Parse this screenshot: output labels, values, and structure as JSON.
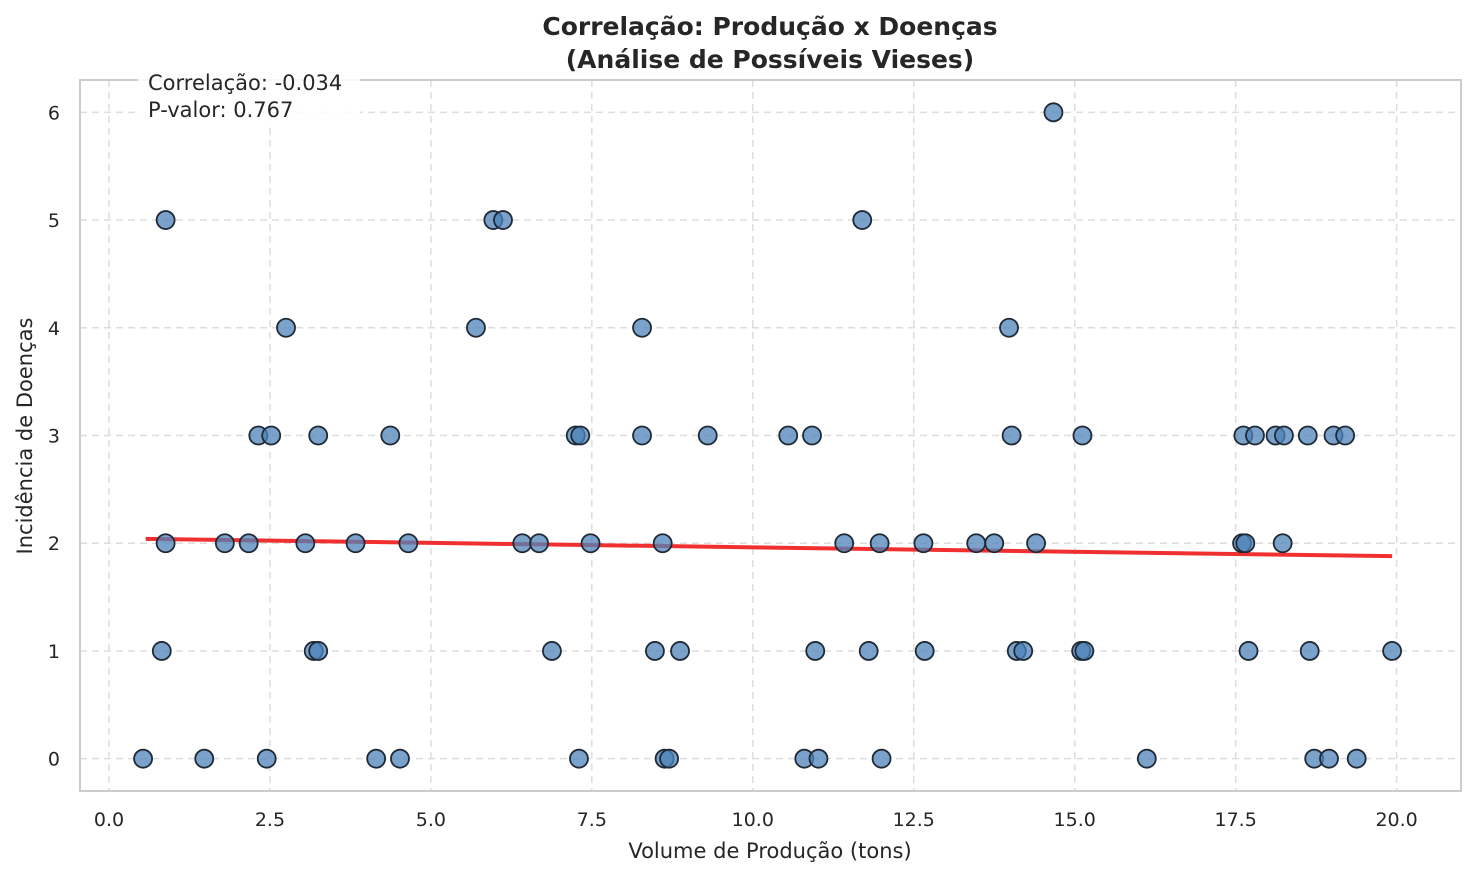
{
  "chart_data": {
    "type": "scatter",
    "title": [
      "Correlação: Produção x Doenças",
      "(Análise de Possíveis Vieses)"
    ],
    "xlabel": "Volume de Produção (tons)",
    "ylabel": "Incidência de Doenças",
    "xlim": [
      -0.45,
      21.0
    ],
    "ylim": [
      -0.3,
      6.3
    ],
    "xticks": [
      0.0,
      2.5,
      5.0,
      7.5,
      10.0,
      12.5,
      15.0,
      17.5,
      20.0
    ],
    "xtick_labels": [
      "0.0",
      "2.5",
      "5.0",
      "7.5",
      "10.0",
      "12.5",
      "15.0",
      "17.5",
      "20.0"
    ],
    "yticks": [
      0,
      1,
      2,
      3,
      4,
      5,
      6
    ],
    "ytick_labels": [
      "0",
      "1",
      "2",
      "3",
      "4",
      "5",
      "6"
    ],
    "grid": true,
    "annotation": [
      "Correlação: -0.034",
      "P-valor: 0.767"
    ],
    "trend_line": {
      "x": [
        0.57,
        19.93
      ],
      "y": [
        2.04,
        1.88
      ],
      "color": "#f03030"
    },
    "point_color": "#4e83b8",
    "points": [
      [
        0.88,
        5
      ],
      [
        14.67,
        6
      ],
      [
        5.97,
        5
      ],
      [
        6.12,
        5
      ],
      [
        11.7,
        5
      ],
      [
        2.75,
        4
      ],
      [
        5.7,
        4
      ],
      [
        8.28,
        4
      ],
      [
        13.98,
        4
      ],
      [
        2.32,
        3
      ],
      [
        2.52,
        3
      ],
      [
        3.25,
        3
      ],
      [
        4.37,
        3
      ],
      [
        7.25,
        3
      ],
      [
        7.32,
        3
      ],
      [
        8.28,
        3
      ],
      [
        9.3,
        3
      ],
      [
        10.55,
        3
      ],
      [
        10.92,
        3
      ],
      [
        14.02,
        3
      ],
      [
        15.12,
        3
      ],
      [
        17.62,
        3
      ],
      [
        17.8,
        3
      ],
      [
        18.12,
        3
      ],
      [
        18.25,
        3
      ],
      [
        18.62,
        3
      ],
      [
        19.02,
        3
      ],
      [
        19.2,
        3
      ],
      [
        0.88,
        2
      ],
      [
        1.8,
        2
      ],
      [
        2.17,
        2
      ],
      [
        3.05,
        2
      ],
      [
        3.83,
        2
      ],
      [
        4.65,
        2
      ],
      [
        6.42,
        2
      ],
      [
        6.68,
        2
      ],
      [
        7.48,
        2
      ],
      [
        8.6,
        2
      ],
      [
        11.42,
        2
      ],
      [
        11.97,
        2
      ],
      [
        12.65,
        2
      ],
      [
        13.47,
        2
      ],
      [
        13.75,
        2
      ],
      [
        14.4,
        2
      ],
      [
        17.6,
        2
      ],
      [
        17.65,
        2
      ],
      [
        18.23,
        2
      ],
      [
        0.82,
        1
      ],
      [
        3.18,
        1
      ],
      [
        3.25,
        1
      ],
      [
        6.88,
        1
      ],
      [
        8.48,
        1
      ],
      [
        8.87,
        1
      ],
      [
        10.97,
        1
      ],
      [
        11.8,
        1
      ],
      [
        12.67,
        1
      ],
      [
        14.1,
        1
      ],
      [
        14.2,
        1
      ],
      [
        15.1,
        1
      ],
      [
        15.15,
        1
      ],
      [
        17.7,
        1
      ],
      [
        18.65,
        1
      ],
      [
        19.93,
        1
      ],
      [
        0.53,
        0
      ],
      [
        1.48,
        0
      ],
      [
        2.45,
        0
      ],
      [
        4.15,
        0
      ],
      [
        4.52,
        0
      ],
      [
        7.3,
        0
      ],
      [
        8.63,
        0
      ],
      [
        8.7,
        0
      ],
      [
        10.8,
        0
      ],
      [
        11.02,
        0
      ],
      [
        12.0,
        0
      ],
      [
        16.12,
        0
      ],
      [
        18.72,
        0
      ],
      [
        18.95,
        0
      ],
      [
        19.38,
        0
      ]
    ]
  }
}
